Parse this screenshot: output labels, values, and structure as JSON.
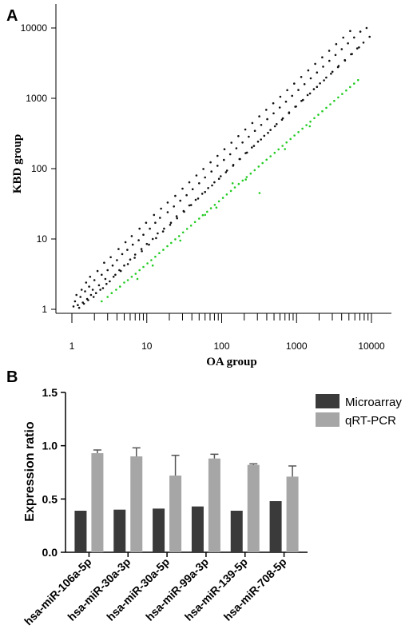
{
  "panels": {
    "a_label": "A",
    "b_label": "B"
  },
  "chart_data": [
    {
      "type": "scatter",
      "panel": "A",
      "xlabel": "OA group",
      "ylabel": "KBD group",
      "x_scale": "log",
      "y_scale": "log",
      "xlim": [
        1,
        10000
      ],
      "ylim": [
        1,
        10000
      ],
      "x_ticks": [
        1,
        10,
        100,
        1000,
        10000
      ],
      "x_tick_labels": [
        "1",
        "10",
        "100",
        "1000",
        "10000"
      ],
      "y_ticks": [
        1,
        10,
        100,
        1000,
        10000
      ],
      "y_tick_labels": [
        "1",
        "10",
        "100",
        "1000",
        "10000"
      ],
      "grid": false,
      "series": [
        {
          "color": "#111111",
          "points": [
            [
              1.05,
              1.1
            ],
            [
              1.1,
              1.3
            ],
            [
              1.2,
              1.15
            ],
            [
              1.3,
              1.5
            ],
            [
              1.4,
              1.25
            ],
            [
              1.5,
              1.8
            ],
            [
              1.6,
              1.4
            ],
            [
              1.7,
              2.1
            ],
            [
              1.8,
              1.6
            ],
            [
              1.9,
              1.9
            ],
            [
              2.0,
              2.6
            ],
            [
              2.1,
              1.7
            ],
            [
              2.3,
              2.2
            ],
            [
              2.5,
              3.1
            ],
            [
              2.6,
              2.0
            ],
            [
              2.8,
              2.7
            ],
            [
              3.0,
              3.6
            ],
            [
              3.2,
              2.5
            ],
            [
              3.5,
              4.2
            ],
            [
              3.8,
              3.1
            ],
            [
              4.0,
              5.0
            ],
            [
              4.3,
              3.6
            ],
            [
              4.7,
              6.1
            ],
            [
              5.0,
              4.2
            ],
            [
              5.5,
              7.0
            ],
            [
              6.0,
              5.1
            ],
            [
              6.5,
              8.3
            ],
            [
              7.0,
              6.0
            ],
            [
              7.8,
              9.6
            ],
            [
              8.5,
              7.2
            ],
            [
              9.0,
              11.5
            ],
            [
              10,
              8.5
            ],
            [
              11,
              14
            ],
            [
              12,
              10
            ],
            [
              13,
              17
            ],
            [
              14,
              12
            ],
            [
              15,
              20
            ],
            [
              17,
              14
            ],
            [
              19,
              24
            ],
            [
              21,
              17
            ],
            [
              23,
              29
            ],
            [
              25,
              21
            ],
            [
              28,
              35
            ],
            [
              31,
              25
            ],
            [
              34,
              42
            ],
            [
              37,
              30
            ],
            [
              41,
              51
            ],
            [
              45,
              36
            ],
            [
              50,
              62
            ],
            [
              55,
              44
            ],
            [
              60,
              75
            ],
            [
              66,
              53
            ],
            [
              73,
              91
            ],
            [
              80,
              64
            ],
            [
              88,
              110
            ],
            [
              97,
              78
            ],
            [
              107,
              133
            ],
            [
              118,
              94
            ],
            [
              130,
              160
            ],
            [
              143,
              113
            ],
            [
              157,
              195
            ],
            [
              173,
              137
            ],
            [
              190,
              235
            ],
            [
              209,
              166
            ],
            [
              230,
              285
            ],
            [
              253,
              200
            ],
            [
              278,
              345
            ],
            [
              306,
              242
            ],
            [
              337,
              418
            ],
            [
              370,
              293
            ],
            [
              407,
              505
            ],
            [
              448,
              355
            ],
            [
              493,
              612
            ],
            [
              542,
              430
            ],
            [
              596,
              740
            ],
            [
              656,
              520
            ],
            [
              722,
              896
            ],
            [
              794,
              630
            ],
            [
              873,
              1085
            ],
            [
              960,
              760
            ],
            [
              1056,
              1313
            ],
            [
              1162,
              920
            ],
            [
              1278,
              1590
            ],
            [
              1406,
              1113
            ],
            [
              1547,
              1924
            ],
            [
              1701,
              1347
            ],
            [
              1871,
              2330
            ],
            [
              2058,
              1630
            ],
            [
              2264,
              2820
            ],
            [
              2491,
              1972
            ],
            [
              2740,
              3413
            ],
            [
              3014,
              2386
            ],
            [
              3315,
              4130
            ],
            [
              3647,
              2888
            ],
            [
              4011,
              5000
            ],
            [
              4412,
              3495
            ],
            [
              4853,
              6050
            ],
            [
              5339,
              4230
            ],
            [
              5873,
              7320
            ],
            [
              6460,
              5120
            ],
            [
              7106,
              8860
            ],
            [
              7817,
              6195
            ],
            [
              8599,
              10000
            ],
            [
              9459,
              7500
            ],
            [
              1.15,
              1.6
            ],
            [
              1.35,
              1.9
            ],
            [
              1.55,
              2.4
            ],
            [
              1.75,
              2.9
            ],
            [
              2.2,
              3.5
            ],
            [
              2.7,
              4.6
            ],
            [
              3.3,
              5.5
            ],
            [
              4.2,
              7.2
            ],
            [
              5.2,
              9.0
            ],
            [
              6.3,
              11
            ],
            [
              8.0,
              14
            ],
            [
              9.8,
              17
            ],
            [
              12.5,
              22
            ],
            [
              15.5,
              27
            ],
            [
              19,
              33
            ],
            [
              24,
              41
            ],
            [
              30,
              52
            ],
            [
              37,
              64
            ],
            [
              46,
              80
            ],
            [
              57,
              99
            ],
            [
              71,
              123
            ],
            [
              88,
              152
            ],
            [
              109,
              189
            ],
            [
              135,
              234
            ],
            [
              167,
              290
            ],
            [
              207,
              360
            ],
            [
              257,
              446
            ],
            [
              318,
              553
            ],
            [
              394,
              686
            ],
            [
              489,
              850
            ],
            [
              606,
              1054
            ],
            [
              751,
              1307
            ],
            [
              931,
              1620
            ],
            [
              1155,
              2009
            ],
            [
              1432,
              2491
            ],
            [
              1775,
              3089
            ],
            [
              2201,
              3830
            ],
            [
              2730,
              4749
            ],
            [
              3385,
              5889
            ],
            [
              4197,
              7302
            ],
            [
              5204,
              9055
            ],
            [
              1.25,
              1.05
            ],
            [
              1.45,
              1.2
            ],
            [
              1.65,
              1.35
            ],
            [
              1.95,
              1.5
            ],
            [
              2.4,
              1.9
            ],
            [
              2.9,
              2.3
            ],
            [
              3.6,
              2.9
            ],
            [
              4.5,
              3.5
            ],
            [
              5.6,
              4.4
            ],
            [
              6.9,
              5.4
            ],
            [
              8.6,
              6.7
            ],
            [
              10.7,
              8.3
            ],
            [
              13.3,
              10.3
            ],
            [
              16.5,
              12.8
            ],
            [
              20.5,
              15.9
            ],
            [
              25.4,
              19.7
            ],
            [
              31.5,
              24.4
            ],
            [
              39,
              30.3
            ],
            [
              48.4,
              37.6
            ],
            [
              60,
              46.6
            ],
            [
              74.4,
              57.8
            ],
            [
              92.3,
              71.7
            ],
            [
              114,
              89
            ],
            [
              142,
              110
            ],
            [
              176,
              137
            ],
            [
              218,
              169
            ],
            [
              270,
              210
            ],
            [
              335,
              260
            ],
            [
              416,
              323
            ],
            [
              515,
              400
            ],
            [
              639,
              496
            ],
            [
              793,
              615
            ],
            [
              983,
              763
            ],
            [
              1219,
              946
            ],
            [
              1512,
              1173
            ],
            [
              1875,
              1455
            ],
            [
              2325,
              1804
            ],
            [
              2883,
              2237
            ],
            [
              3575,
              2774
            ],
            [
              4433,
              3440
            ],
            [
              5497,
              4266
            ],
            [
              6816,
              5290
            ]
          ]
        },
        {
          "color": "#22cc22",
          "points": [
            [
              2.5,
              1.3
            ],
            [
              3.0,
              1.5
            ],
            [
              3.4,
              1.7
            ],
            [
              3.9,
              1.9
            ],
            [
              4.4,
              2.1
            ],
            [
              5.0,
              2.4
            ],
            [
              5.6,
              2.6
            ],
            [
              6.3,
              2.9
            ],
            [
              7.1,
              3.2
            ],
            [
              8.0,
              3.6
            ],
            [
              9.0,
              4.0
            ],
            [
              10.2,
              4.5
            ],
            [
              11.5,
              5.0
            ],
            [
              13,
              5.6
            ],
            [
              14.7,
              6.3
            ],
            [
              16.6,
              7.0
            ],
            [
              18.8,
              7.9
            ],
            [
              21.2,
              8.8
            ],
            [
              24,
              9.9
            ],
            [
              27,
              11
            ],
            [
              30.5,
              12.4
            ],
            [
              34.5,
              13.9
            ],
            [
              39,
              15.5
            ],
            [
              44,
              17.4
            ],
            [
              50,
              19.5
            ],
            [
              56,
              21.8
            ],
            [
              64,
              24.4
            ],
            [
              72,
              27.3
            ],
            [
              81,
              30.6
            ],
            [
              92,
              34.3
            ],
            [
              104,
              38.4
            ],
            [
              117,
              43
            ],
            [
              133,
              48.2
            ],
            [
              150,
              54
            ],
            [
              169,
              60.5
            ],
            [
              191,
              67.7
            ],
            [
              216,
              75.9
            ],
            [
              244,
              85
            ],
            [
              276,
              95.2
            ],
            [
              312,
              107
            ],
            [
              352,
              120
            ],
            [
              398,
              134
            ],
            [
              450,
              150
            ],
            [
              509,
              168
            ],
            [
              575,
              188
            ],
            [
              650,
              211
            ],
            [
              734,
              236
            ],
            [
              830,
              264
            ],
            [
              938,
              296
            ],
            [
              1060,
              331
            ],
            [
              1198,
              371
            ],
            [
              1354,
              416
            ],
            [
              1530,
              466
            ],
            [
              1729,
              522
            ],
            [
              1954,
              584
            ],
            [
              2208,
              654
            ],
            [
              2495,
              733
            ],
            [
              2820,
              821
            ],
            [
              3187,
              919
            ],
            [
              3601,
              1030
            ],
            [
              4069,
              1153
            ],
            [
              4598,
              1292
            ],
            [
              5196,
              1447
            ],
            [
              5871,
              1620
            ],
            [
              6635,
              1815
            ],
            [
              320,
              45
            ],
            [
              140,
              62
            ],
            [
              60,
              22
            ],
            [
              28,
              9.5
            ],
            [
              12,
              4.2
            ],
            [
              7.5,
              2.7
            ],
            [
              85,
              28
            ],
            [
              210,
              70
            ],
            [
              700,
              190
            ],
            [
              1500,
              400
            ]
          ]
        }
      ]
    },
    {
      "type": "bar",
      "panel": "B",
      "categories": [
        "hsa-miR-106a-5p",
        "hsa-miR-30a-3p",
        "hsa-miR-30a-5p",
        "hsa-miR-99a-3p",
        "hsa-miR-139-5p",
        "hsa-miR-708-5p"
      ],
      "ylabel": "Expression ratio",
      "ylim": [
        0,
        1.5
      ],
      "y_ticks": [
        0,
        0.5,
        1.0,
        1.5
      ],
      "y_tick_labels": [
        "0.0",
        "0.5",
        "1.0",
        "1.5"
      ],
      "grid": false,
      "legend_position": "top-right",
      "series": [
        {
          "name": "Microarray",
          "color": "#3a3a3a",
          "values": [
            0.39,
            0.4,
            0.41,
            0.43,
            0.39,
            0.48
          ],
          "errors": [
            0,
            0,
            0,
            0,
            0,
            0
          ]
        },
        {
          "name": "qRT-PCR",
          "color": "#a6a6a6",
          "values": [
            0.93,
            0.9,
            0.72,
            0.88,
            0.82,
            0.71
          ],
          "errors": [
            0.03,
            0.08,
            0.19,
            0.04,
            0.01,
            0.1
          ]
        }
      ]
    }
  ]
}
